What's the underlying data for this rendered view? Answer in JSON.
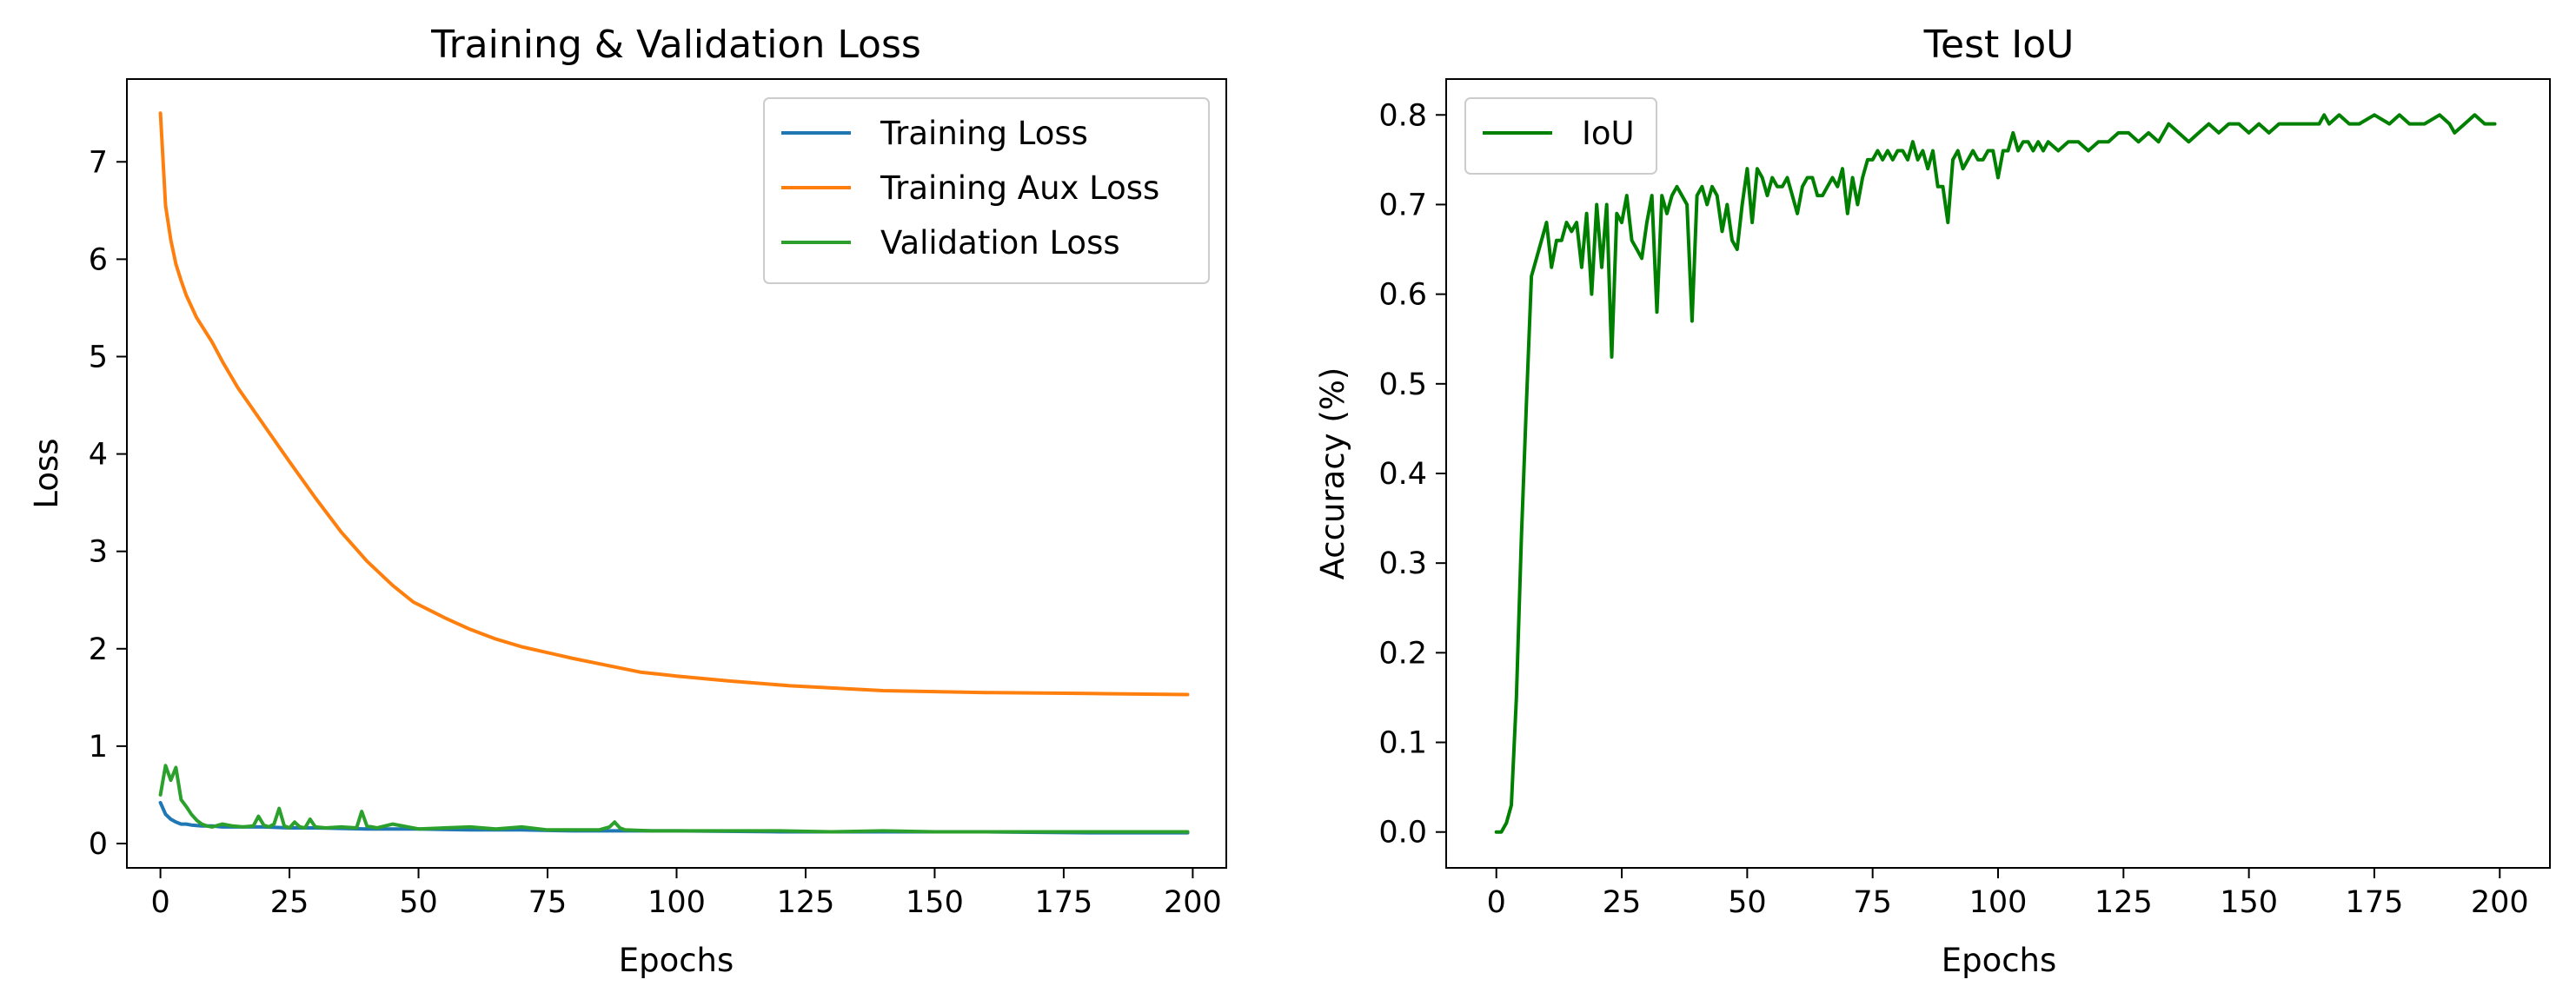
{
  "chart_data": [
    {
      "type": "line",
      "title": "Training & Validation Loss",
      "xlabel": "Epochs",
      "ylabel": "Loss",
      "xlim": [
        -6.5,
        206.5
      ],
      "ylim": [
        -0.25,
        7.85
      ],
      "xticks": [
        0,
        25,
        50,
        75,
        100,
        125,
        150,
        175,
        200
      ],
      "yticks": [
        0,
        1,
        2,
        3,
        4,
        5,
        6,
        7
      ],
      "grid": false,
      "legend_position": "upper right",
      "series": [
        {
          "name": "Training Loss",
          "color": "#1f77b4",
          "x": [
            0,
            1,
            2,
            3,
            4,
            5,
            6,
            8,
            10,
            12,
            15,
            20,
            25,
            30,
            40,
            50,
            60,
            70,
            80,
            90,
            100,
            120,
            140,
            160,
            180,
            199
          ],
          "y": [
            0.42,
            0.3,
            0.25,
            0.22,
            0.2,
            0.2,
            0.19,
            0.18,
            0.18,
            0.17,
            0.17,
            0.17,
            0.16,
            0.16,
            0.15,
            0.15,
            0.14,
            0.14,
            0.13,
            0.13,
            0.13,
            0.12,
            0.12,
            0.12,
            0.11,
            0.11
          ]
        },
        {
          "name": "Training Aux Loss",
          "color": "#ff7f0e",
          "x": [
            0,
            1,
            2,
            3,
            4,
            5,
            7,
            10,
            12,
            15,
            20,
            25,
            30,
            35,
            40,
            45,
            49,
            55,
            60,
            65,
            70,
            80,
            93,
            100,
            110,
            122,
            140,
            160,
            180,
            199
          ],
          "y": [
            7.5,
            6.55,
            6.2,
            5.95,
            5.78,
            5.63,
            5.4,
            5.15,
            4.95,
            4.68,
            4.3,
            3.92,
            3.55,
            3.2,
            2.9,
            2.65,
            2.48,
            2.32,
            2.2,
            2.1,
            2.02,
            1.9,
            1.76,
            1.72,
            1.67,
            1.62,
            1.57,
            1.55,
            1.54,
            1.53
          ]
        },
        {
          "name": "Validation Loss",
          "color": "#2ca02c",
          "x": [
            0,
            1,
            2,
            3,
            4,
            5,
            6,
            7,
            8,
            9,
            10,
            12,
            14,
            16,
            18,
            19,
            20,
            21,
            22,
            23,
            24,
            25,
            26,
            27,
            28,
            29,
            30,
            32,
            35,
            38,
            39,
            40,
            42,
            45,
            50,
            55,
            60,
            65,
            70,
            75,
            80,
            85,
            87,
            88,
            89,
            90,
            95,
            100,
            110,
            120,
            130,
            140,
            150,
            160,
            170,
            180,
            190,
            199
          ],
          "y": [
            0.5,
            0.8,
            0.65,
            0.78,
            0.45,
            0.38,
            0.3,
            0.24,
            0.2,
            0.18,
            0.17,
            0.2,
            0.18,
            0.17,
            0.18,
            0.28,
            0.19,
            0.17,
            0.2,
            0.36,
            0.18,
            0.16,
            0.22,
            0.17,
            0.16,
            0.25,
            0.17,
            0.16,
            0.17,
            0.16,
            0.33,
            0.18,
            0.16,
            0.2,
            0.15,
            0.16,
            0.17,
            0.15,
            0.17,
            0.14,
            0.14,
            0.14,
            0.17,
            0.22,
            0.16,
            0.14,
            0.13,
            0.13,
            0.13,
            0.13,
            0.12,
            0.13,
            0.12,
            0.12,
            0.12,
            0.12,
            0.12,
            0.12
          ]
        }
      ]
    },
    {
      "type": "line",
      "title": "Test IoU",
      "xlabel": "Epochs",
      "ylabel": "Accuracy (%)",
      "xlim": [
        -10,
        210
      ],
      "ylim": [
        -0.04,
        0.84
      ],
      "xticks": [
        0,
        25,
        50,
        75,
        100,
        125,
        150,
        175,
        200
      ],
      "yticks": [
        0.0,
        0.1,
        0.2,
        0.3,
        0.4,
        0.5,
        0.6,
        0.7,
        0.8
      ],
      "grid": false,
      "legend_position": "upper left",
      "series": [
        {
          "name": "IoU",
          "color": "#008000",
          "x": [
            0,
            1,
            2,
            3,
            4,
            5,
            6,
            7,
            8,
            9,
            10,
            11,
            12,
            13,
            14,
            15,
            16,
            17,
            18,
            19,
            20,
            21,
            22,
            23,
            24,
            25,
            26,
            27,
            28,
            29,
            30,
            31,
            32,
            33,
            34,
            35,
            36,
            37,
            38,
            39,
            40,
            41,
            42,
            43,
            44,
            45,
            46,
            47,
            48,
            49,
            50,
            51,
            52,
            53,
            54,
            55,
            56,
            57,
            58,
            59,
            60,
            61,
            62,
            63,
            64,
            65,
            66,
            67,
            68,
            69,
            70,
            71,
            72,
            73,
            74,
            75,
            76,
            77,
            78,
            79,
            80,
            81,
            82,
            83,
            84,
            85,
            86,
            87,
            88,
            89,
            90,
            91,
            92,
            93,
            94,
            95,
            96,
            97,
            98,
            99,
            100,
            101,
            102,
            103,
            104,
            105,
            106,
            107,
            108,
            109,
            110,
            112,
            114,
            116,
            118,
            120,
            122,
            124,
            126,
            128,
            130,
            132,
            134,
            136,
            138,
            140,
            142,
            144,
            146,
            148,
            150,
            152,
            154,
            156,
            158,
            160,
            162,
            164,
            165,
            166,
            168,
            170,
            172,
            175,
            178,
            180,
            182,
            185,
            188,
            190,
            191,
            193,
            195,
            197,
            199
          ],
          "y": [
            0.0,
            0.0,
            0.01,
            0.03,
            0.15,
            0.33,
            0.48,
            0.62,
            0.64,
            0.66,
            0.68,
            0.63,
            0.66,
            0.66,
            0.68,
            0.67,
            0.68,
            0.63,
            0.69,
            0.6,
            0.7,
            0.63,
            0.7,
            0.53,
            0.69,
            0.68,
            0.71,
            0.66,
            0.65,
            0.64,
            0.68,
            0.71,
            0.58,
            0.71,
            0.69,
            0.71,
            0.72,
            0.71,
            0.7,
            0.57,
            0.71,
            0.72,
            0.7,
            0.72,
            0.71,
            0.67,
            0.7,
            0.66,
            0.65,
            0.7,
            0.74,
            0.68,
            0.74,
            0.73,
            0.71,
            0.73,
            0.72,
            0.72,
            0.73,
            0.71,
            0.69,
            0.72,
            0.73,
            0.73,
            0.71,
            0.71,
            0.72,
            0.73,
            0.72,
            0.74,
            0.69,
            0.73,
            0.7,
            0.73,
            0.75,
            0.75,
            0.76,
            0.75,
            0.76,
            0.75,
            0.76,
            0.76,
            0.75,
            0.77,
            0.75,
            0.76,
            0.74,
            0.76,
            0.72,
            0.72,
            0.68,
            0.75,
            0.76,
            0.74,
            0.75,
            0.76,
            0.75,
            0.75,
            0.76,
            0.76,
            0.73,
            0.76,
            0.76,
            0.78,
            0.76,
            0.77,
            0.77,
            0.76,
            0.77,
            0.76,
            0.77,
            0.76,
            0.77,
            0.77,
            0.76,
            0.77,
            0.77,
            0.78,
            0.78,
            0.77,
            0.78,
            0.77,
            0.79,
            0.78,
            0.77,
            0.78,
            0.79,
            0.78,
            0.79,
            0.79,
            0.78,
            0.79,
            0.78,
            0.79,
            0.79,
            0.79,
            0.79,
            0.79,
            0.8,
            0.79,
            0.8,
            0.79,
            0.79,
            0.8,
            0.79,
            0.8,
            0.79,
            0.79,
            0.8,
            0.79,
            0.78,
            0.79,
            0.8,
            0.79,
            0.79
          ]
        }
      ]
    }
  ]
}
